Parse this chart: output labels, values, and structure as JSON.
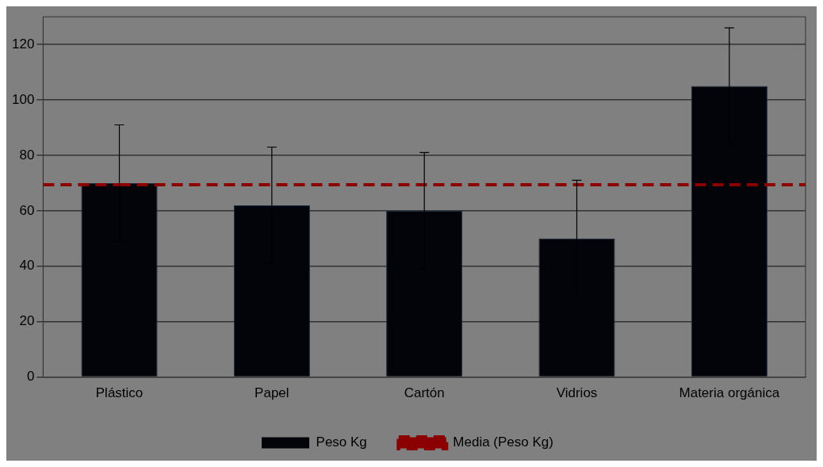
{
  "chart_data": {
    "type": "bar",
    "categories": [
      "Plástico",
      "Papel",
      "Cartón",
      "Vidrios",
      "Materia orgánica"
    ],
    "series": [
      {
        "name": "Peso Kg",
        "color": "#03040a",
        "values": [
          70,
          62,
          60,
          50,
          105
        ],
        "errors": [
          21,
          21,
          21,
          21,
          21
        ]
      }
    ],
    "ref_lines": [
      {
        "axis": "y",
        "value": 69.4,
        "label": "Media (Peso Kg)",
        "color": "#8b0000",
        "line_style": "dashed"
      }
    ],
    "ylim": [
      0,
      130
    ],
    "yticks": [
      0,
      20,
      40,
      60,
      80,
      100,
      120
    ],
    "grid": "y",
    "legend": "bottom"
  }
}
